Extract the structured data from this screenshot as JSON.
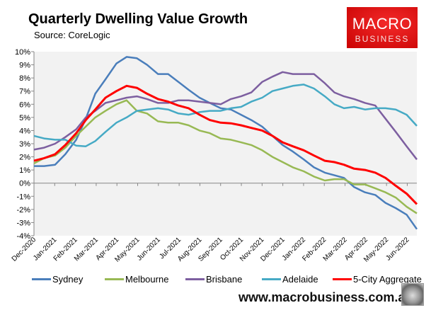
{
  "header": {
    "title": "Quarterly Dwelling Value Growth",
    "source": "Source: CoreLogic"
  },
  "logo": {
    "line1": "MACRO",
    "line2": "BUSINESS",
    "color": "#e01b1b"
  },
  "footer": {
    "url": "www.macrobusiness.com.au",
    "emblem": "wolf-logo"
  },
  "chart_data": {
    "type": "line",
    "title": "Quarterly Dwelling Value Growth",
    "xlabel": "",
    "ylabel": "",
    "ylim": [
      -4,
      10
    ],
    "yticks": [
      "10%",
      "9%",
      "8%",
      "7%",
      "6%",
      "5%",
      "4%",
      "3%",
      "2%",
      "1%",
      "0%",
      "-1%",
      "-2%",
      "-3%",
      "-4%"
    ],
    "xticks": [
      "Dec-2020",
      "Jan-2021",
      "Feb-2021",
      "Mar-2021",
      "Apr-2021",
      "May-2021",
      "Jun-2021",
      "Jul-2021",
      "Aug-2021",
      "Sep-2021",
      "Oct-2021",
      "Nov-2021",
      "Dec-2021",
      "Jan-2022",
      "Feb-2022",
      "Mar-2022",
      "Apr-2022",
      "May-2022",
      "Jun-2022"
    ],
    "grid": false,
    "legend_position": "bottom",
    "x": [
      "2020-12-01",
      "2020-12-16",
      "2021-01-01",
      "2021-01-16",
      "2021-02-01",
      "2021-02-15",
      "2021-03-01",
      "2021-03-16",
      "2021-04-01",
      "2021-04-16",
      "2021-05-01",
      "2021-05-16",
      "2021-06-01",
      "2021-06-16",
      "2021-07-01",
      "2021-07-16",
      "2021-08-01",
      "2021-08-16",
      "2021-09-01",
      "2021-09-16",
      "2021-10-01",
      "2021-10-16",
      "2021-11-01",
      "2021-11-16",
      "2021-12-01",
      "2021-12-16",
      "2022-01-01",
      "2022-01-16",
      "2022-02-01",
      "2022-02-15",
      "2022-03-01",
      "2022-03-16",
      "2022-04-01",
      "2022-04-16",
      "2022-05-01",
      "2022-05-16",
      "2022-06-01",
      "2022-06-16"
    ],
    "series": [
      {
        "name": "Sydney",
        "color": "#4a7ebb",
        "values": [
          1.3,
          1.3,
          1.4,
          2.2,
          3.3,
          4.9,
          6.8,
          7.9,
          9.1,
          9.6,
          9.5,
          9.0,
          8.3,
          8.3,
          7.7,
          7.1,
          6.5,
          6.1,
          5.7,
          5.6,
          5.2,
          4.8,
          4.3,
          3.6,
          2.9,
          2.4,
          1.8,
          1.2,
          0.8,
          0.6,
          0.4,
          -0.3,
          -0.7,
          -0.9,
          -1.5,
          -1.9,
          -2.4,
          -3.5
        ]
      },
      {
        "name": "Melbourne",
        "color": "#98b954",
        "values": [
          1.5,
          1.9,
          2.1,
          2.7,
          3.6,
          4.3,
          5.0,
          5.5,
          6.0,
          6.3,
          5.5,
          5.3,
          4.7,
          4.6,
          4.6,
          4.4,
          4.0,
          3.8,
          3.4,
          3.3,
          3.1,
          2.9,
          2.5,
          2.0,
          1.6,
          1.2,
          0.9,
          0.5,
          0.2,
          0.3,
          0.3,
          -0.1,
          -0.1,
          -0.4,
          -0.7,
          -1.1,
          -1.8,
          -2.3
        ]
      },
      {
        "name": "Brisbane",
        "color": "#7d5fa0",
        "values": [
          2.55,
          2.7,
          3.0,
          3.5,
          4.1,
          5.0,
          5.5,
          6.1,
          6.3,
          6.5,
          6.6,
          6.4,
          6.1,
          6.1,
          6.3,
          6.3,
          6.2,
          6.1,
          6.0,
          6.4,
          6.6,
          6.9,
          7.7,
          8.1,
          8.45,
          8.3,
          8.3,
          8.3,
          7.6,
          6.9,
          6.6,
          6.4,
          6.1,
          5.9,
          4.9,
          3.9,
          2.8,
          1.8
        ]
      },
      {
        "name": "Adelaide",
        "color": "#46aac5",
        "values": [
          3.6,
          3.4,
          3.3,
          3.3,
          2.85,
          2.8,
          3.2,
          3.9,
          4.6,
          5.0,
          5.5,
          5.6,
          5.7,
          5.6,
          5.3,
          5.2,
          5.4,
          5.5,
          5.5,
          5.7,
          5.8,
          6.2,
          6.5,
          7.0,
          7.2,
          7.4,
          7.5,
          7.2,
          6.6,
          6.0,
          5.7,
          5.8,
          5.6,
          5.7,
          5.7,
          5.6,
          5.2,
          4.35
        ]
      },
      {
        "name": "5-City Aggregate",
        "color": "#ff0000",
        "values": [
          1.7,
          1.9,
          2.2,
          2.9,
          3.8,
          4.8,
          5.6,
          6.5,
          7.0,
          7.4,
          7.25,
          6.8,
          6.4,
          6.2,
          5.9,
          5.7,
          5.2,
          4.8,
          4.6,
          4.55,
          4.4,
          4.2,
          4.0,
          3.6,
          3.1,
          2.8,
          2.5,
          2.1,
          1.7,
          1.6,
          1.4,
          1.1,
          1.0,
          0.8,
          0.4,
          -0.2,
          -0.8,
          -1.6
        ]
      }
    ]
  }
}
